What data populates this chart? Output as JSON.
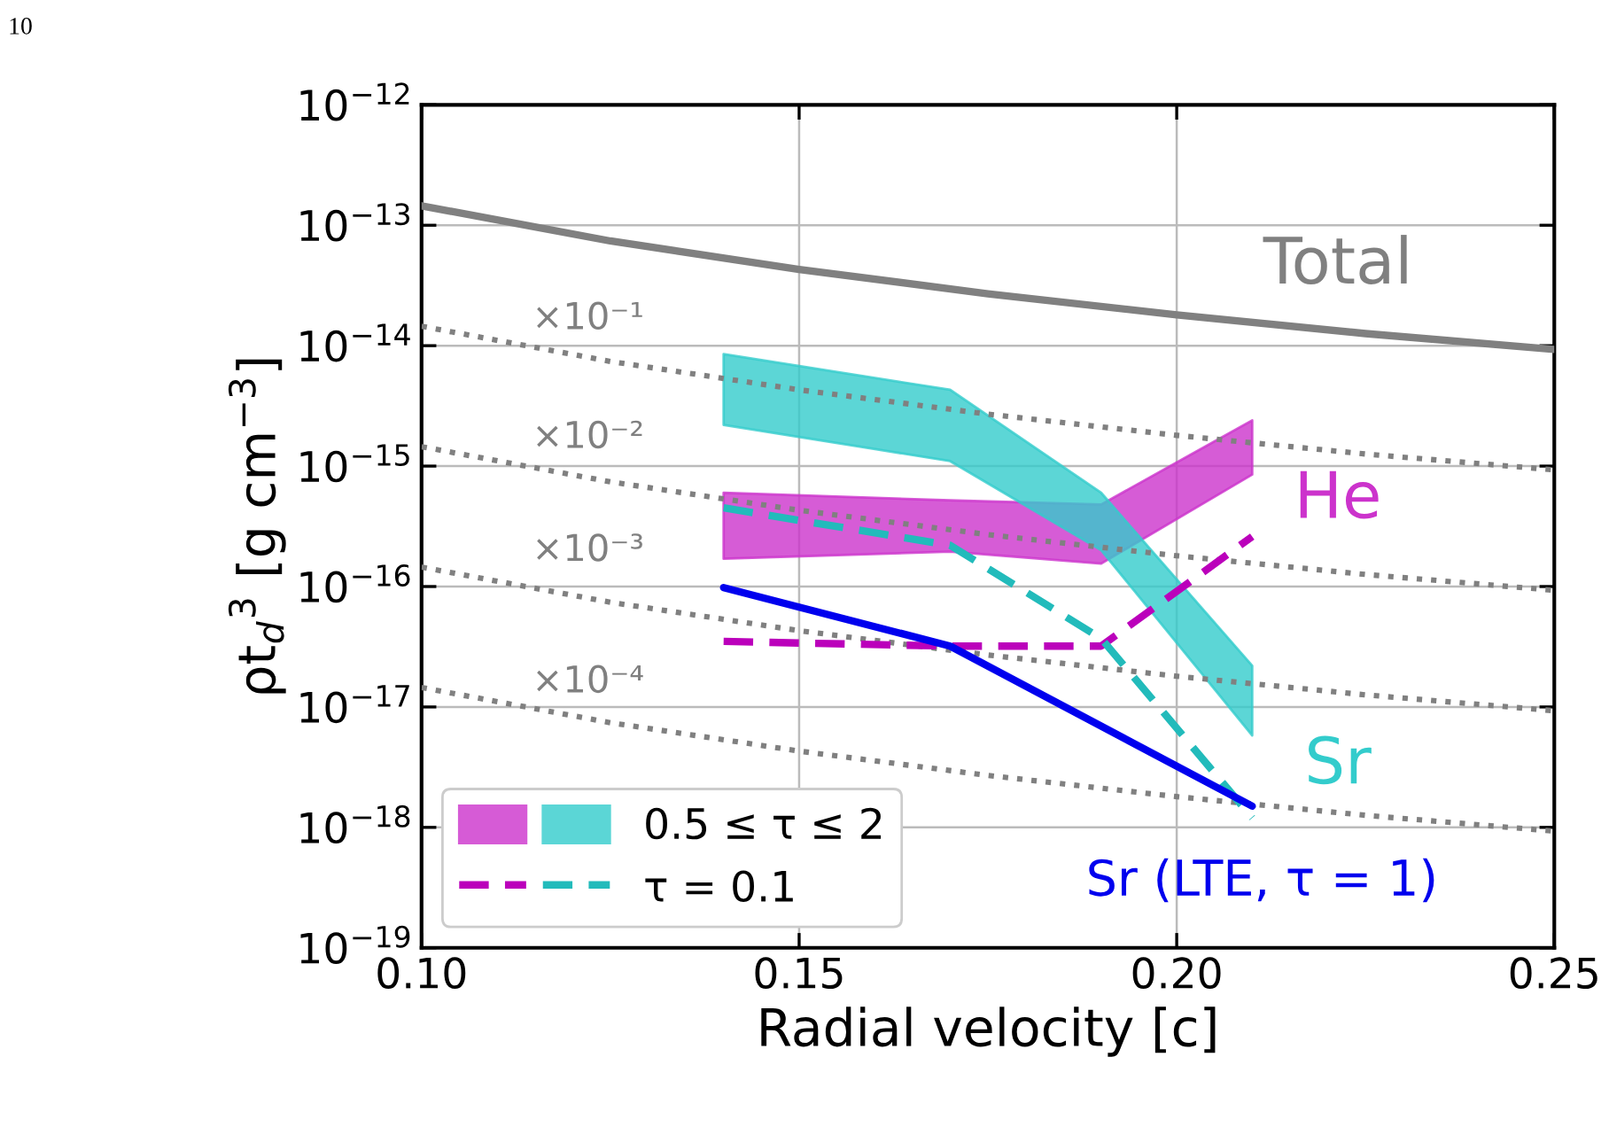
{
  "chart_data": {
    "type": "line",
    "xlabel": "Radial velocity [c]",
    "ylabel": "ρt$_{d}$$^{3}$ [g cm$^{−3}$]",
    "log": "y",
    "grid": true,
    "legend": "bottom left",
    "xlim": [
      0.1,
      0.25
    ],
    "xticks": [
      {
        "value": 0.1,
        "label": "0.10"
      },
      {
        "value": 0.15,
        "label": "0.15"
      },
      {
        "value": 0.2,
        "label": "0.20"
      },
      {
        "value": 0.25,
        "label": "0.25"
      }
    ],
    "ylim": [
      1e-19,
      1e-12
    ],
    "yticks": [
      {
        "value": 1e-19,
        "label": "10$^{−19}$"
      },
      {
        "value": 1e-18,
        "label": "10$^{−18}$"
      },
      {
        "value": 1e-17,
        "label": "10$^{−17}$"
      },
      {
        "value": 1e-16,
        "label": "10$^{−16}$"
      },
      {
        "value": 1e-15,
        "label": "10$^{−15}$"
      },
      {
        "value": 1e-14,
        "label": "10$^{−14}$"
      },
      {
        "value": 1e-13,
        "label": "10$^{−13}$"
      },
      {
        "value": 1e-12,
        "label": "10$^{−12}$"
      }
    ],
    "series": [
      {
        "color": "#808080",
        "line_style": "solid",
        "x": [
          0.1,
          0.125,
          0.15,
          0.175,
          0.2,
          0.225,
          0.25
        ],
        "values": [
          1.45e-13,
          7.4e-14,
          4.3e-14,
          2.7e-14,
          1.8e-14,
          1.26e-14,
          9.3e-15
        ]
      },
      {
        "color": "#808080",
        "line_style": "dotted",
        "x": [
          0.1,
          0.125,
          0.15,
          0.175,
          0.2,
          0.225,
          0.25
        ],
        "values": [
          1.45e-14,
          7.4e-15,
          4.3e-15,
          2.7e-15,
          1.8e-15,
          1.26e-15,
          9.3e-16
        ]
      },
      {
        "color": "#808080",
        "line_style": "dotted",
        "x": [
          0.1,
          0.125,
          0.15,
          0.175,
          0.2,
          0.225,
          0.25
        ],
        "values": [
          1.45e-15,
          7.4e-16,
          4.3e-16,
          2.7e-16,
          1.8e-16,
          1.26e-16,
          9.3e-17
        ]
      },
      {
        "color": "#808080",
        "line_style": "dotted",
        "x": [
          0.1,
          0.125,
          0.15,
          0.175,
          0.2,
          0.225,
          0.25
        ],
        "values": [
          1.45e-16,
          7.4e-17,
          4.3e-17,
          2.7e-17,
          1.8e-17,
          1.26e-17,
          9.3e-18
        ]
      },
      {
        "color": "#808080",
        "line_style": "dotted",
        "x": [
          0.1,
          0.125,
          0.15,
          0.175,
          0.2,
          0.225,
          0.25
        ],
        "values": [
          1.45e-17,
          7.4e-18,
          4.3e-18,
          2.7e-18,
          1.8e-18,
          1.26e-18,
          9.3e-19
        ]
      },
      {
        "type": "area",
        "color": "#cc33cc",
        "x": [
          0.14,
          0.17,
          0.19,
          0.21
        ],
        "values": [
          null,
          null,
          null,
          null
        ],
        "upper": [
          6e-16,
          5.2e-16,
          4.8e-16,
          2.4e-15
        ],
        "lower": [
          1.7e-16,
          1.95e-16,
          1.55e-16,
          8.5e-16
        ]
      },
      {
        "type": "area",
        "name": "0.5 ≤ τ ≤ 2",
        "color": "#33cccc",
        "x": [
          0.14,
          0.17,
          0.19,
          0.21
        ],
        "values": [
          null,
          null,
          null,
          null
        ],
        "upper": [
          8.5e-15,
          4.3e-15,
          6e-16,
          2.2e-17
        ],
        "lower": [
          2.2e-15,
          1.1e-15,
          2e-16,
          5.8e-18
        ]
      },
      {
        "color": "#bb00bb",
        "line_style": "dashed",
        "x": [
          0.14,
          0.17,
          0.19,
          0.21
        ],
        "values": [
          3.5e-17,
          3.2e-17,
          3.2e-17,
          2.6e-16
        ]
      },
      {
        "name": "τ = 0.1",
        "color": "#22bbbb",
        "line_style": "dashed",
        "x": [
          0.14,
          0.17,
          0.19,
          0.21
        ],
        "values": [
          4.5e-16,
          2.2e-16,
          3.7e-17,
          1.2e-18
        ]
      },
      {
        "color": "#0000ee",
        "line_style": "solid",
        "x": [
          0.14,
          0.17,
          0.21
        ],
        "values": [
          9.8e-17,
          3.2e-17,
          1.5e-18
        ]
      }
    ],
    "annotations": [
      "10",
      "Total",
      "×10⁻¹",
      "×10⁻²",
      "×10⁻³",
      "×10⁻⁴",
      "He",
      "Sr",
      "Sr (LTE, τ = 1)"
    ]
  }
}
